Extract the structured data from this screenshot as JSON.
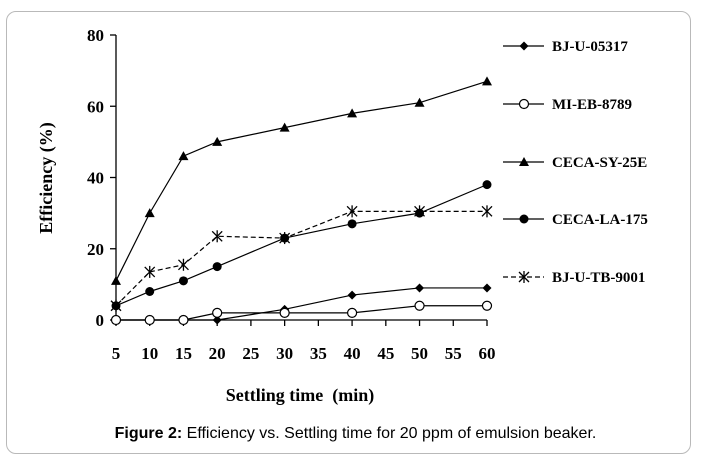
{
  "caption": {
    "label": "Figure 2:",
    "text": "Efficiency vs. Settling time for 20 ppm of emulsion beaker."
  },
  "chart_data": {
    "type": "line",
    "xlabel": "Settling time  (min)",
    "ylabel": "Efficiency  (%)",
    "x_ticks": [
      "5",
      "10",
      "15",
      "20",
      "25",
      "30",
      "35",
      "40",
      "45",
      "50",
      "55",
      "60"
    ],
    "y_ticks": [
      0,
      20,
      40,
      60,
      80
    ],
    "ylim": [
      0,
      80
    ],
    "grid": false,
    "legend_position": "right",
    "x": [
      5,
      10,
      15,
      20,
      30,
      40,
      50,
      60
    ],
    "series": [
      {
        "name": "BJ-U-05317",
        "marker": "diamond",
        "line": "solid",
        "color": "#000000",
        "values": [
          0,
          0,
          0,
          0,
          3,
          7,
          9,
          9
        ]
      },
      {
        "name": "MI-EB-8789",
        "marker": "open-circle",
        "line": "solid",
        "color": "#000000",
        "values": [
          0,
          0,
          0,
          2,
          2,
          2,
          4,
          4
        ]
      },
      {
        "name": "CECA-SY-25E",
        "marker": "triangle",
        "line": "solid",
        "color": "#000000",
        "values": [
          11,
          30,
          46,
          50,
          54,
          58,
          61,
          67
        ]
      },
      {
        "name": "CECA-LA-175",
        "marker": "filled-circle",
        "line": "solid",
        "color": "#000000",
        "values": [
          4,
          8,
          11,
          15,
          23,
          27,
          30,
          38
        ]
      },
      {
        "name": "BJ-U-TB-9001",
        "marker": "star",
        "line": "dashed",
        "color": "#000000",
        "values": [
          4,
          13.5,
          15.5,
          23.5,
          23,
          30.5,
          30.5,
          30.5
        ]
      }
    ]
  }
}
